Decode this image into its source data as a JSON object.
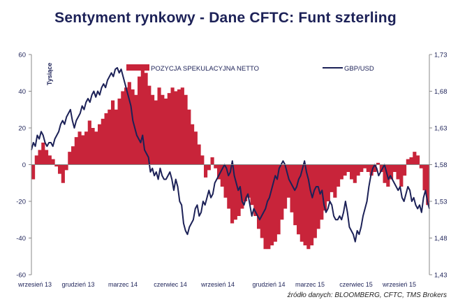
{
  "title": "Sentyment rynkowy - Dane CFTC:  Funt szterling",
  "source": "źródło danych: BLOOMBERG, CFTC, TMS Brokers",
  "colors": {
    "bars": "#c8243a",
    "line": "#1c2157",
    "axis": "#1c2157",
    "title": "#1c2157"
  },
  "chart_data": {
    "type": "bar+line",
    "title": "Sentyment rynkowy - Dane CFTC:  Funt szterling",
    "y_left_label": "Tysiące",
    "y_left": {
      "min": -60,
      "max": 60,
      "ticks": [
        -60,
        -40,
        -20,
        0,
        20,
        40,
        60
      ]
    },
    "y_right": {
      "min": 1.43,
      "max": 1.73,
      "ticks": [
        "1,43",
        "1,48",
        "1,53",
        "1,58",
        "1,63",
        "1,68",
        "1,73"
      ]
    },
    "x_ticks": [
      "wrzesień 13",
      "grudzień 13",
      "marzec 14",
      "czerwiec 14",
      "wrzesień 14",
      "grudzień 14",
      "marzec 15",
      "czerwiec 15",
      "wrzesień 15"
    ],
    "series": [
      {
        "name": "POZYCJA SPEKULACYJNA NETTO",
        "kind": "bar",
        "axis": "left",
        "values": [
          -8,
          5,
          8,
          12,
          8,
          5,
          3,
          -1,
          -5,
          -10,
          -3,
          7,
          10,
          15,
          18,
          16,
          18,
          24,
          20,
          18,
          22,
          25,
          28,
          30,
          35,
          30,
          36,
          40,
          42,
          45,
          41,
          38,
          48,
          53,
          50,
          43,
          38,
          35,
          42,
          38,
          36,
          39,
          42,
          40,
          41,
          42,
          38,
          30,
          22,
          18,
          11,
          5,
          -7,
          -3,
          4,
          -2,
          -8,
          -12,
          -18,
          -24,
          -32,
          -30,
          -28,
          -24,
          -20,
          -18,
          -22,
          -28,
          -35,
          -40,
          -46,
          -46,
          -44,
          -42,
          -38,
          -30,
          -24,
          -18,
          -26,
          -33,
          -38,
          -42,
          -44,
          -46,
          -44,
          -40,
          -35,
          -30,
          -25,
          -20,
          -15,
          -18,
          -12,
          -8,
          -6,
          -4,
          -8,
          -10,
          -6,
          -4,
          -2,
          -4,
          -6,
          -4,
          1,
          -4,
          -10,
          -12,
          -8,
          -4,
          -8,
          -12,
          -6,
          3,
          4,
          7,
          5,
          -2,
          -14,
          -22
        ]
      },
      {
        "name": "GBP/USD",
        "kind": "line",
        "axis": "right",
        "values": [
          1.6,
          1.61,
          1.605,
          1.62,
          1.615,
          1.625,
          1.62,
          1.61,
          1.605,
          1.61,
          1.61,
          1.605,
          1.615,
          1.62,
          1.625,
          1.635,
          1.64,
          1.635,
          1.645,
          1.65,
          1.655,
          1.64,
          1.63,
          1.64,
          1.645,
          1.65,
          1.66,
          1.655,
          1.665,
          1.67,
          1.665,
          1.675,
          1.68,
          1.672,
          1.68,
          1.675,
          1.685,
          1.69,
          1.685,
          1.695,
          1.7,
          1.705,
          1.7,
          1.71,
          1.712,
          1.705,
          1.71,
          1.7,
          1.69,
          1.68,
          1.67,
          1.66,
          1.64,
          1.63,
          1.62,
          1.615,
          1.61,
          1.62,
          1.6,
          1.595,
          1.59,
          1.57,
          1.575,
          1.565,
          1.57,
          1.56,
          1.575,
          1.565,
          1.56,
          1.56,
          1.565,
          1.57,
          1.56,
          1.545,
          1.56,
          1.55,
          1.53,
          1.525,
          1.5,
          1.49,
          1.485,
          1.495,
          1.5,
          1.505,
          1.52,
          1.525,
          1.51,
          1.515,
          1.53,
          1.525,
          1.535,
          1.545,
          1.535,
          1.54,
          1.555,
          1.56,
          1.565,
          1.57,
          1.575,
          1.58,
          1.575,
          1.565,
          1.57,
          1.585,
          1.565,
          1.555,
          1.545,
          1.55,
          1.53,
          1.525,
          1.535,
          1.54,
          1.525,
          1.51,
          1.52,
          1.515,
          1.51,
          1.505,
          1.51,
          1.515,
          1.52,
          1.53,
          1.535,
          1.545,
          1.555,
          1.565,
          1.56,
          1.575,
          1.58,
          1.585,
          1.58,
          1.57,
          1.56,
          1.555,
          1.55,
          1.545,
          1.55,
          1.56,
          1.565,
          1.575,
          1.585,
          1.57,
          1.56,
          1.545,
          1.535,
          1.545,
          1.55,
          1.55,
          1.54,
          1.545,
          1.525,
          1.515,
          1.52,
          1.53,
          1.525,
          1.51,
          1.505,
          1.505,
          1.51,
          1.505,
          1.515,
          1.53,
          1.515,
          1.495,
          1.49,
          1.485,
          1.475,
          1.49,
          1.485,
          1.495,
          1.51,
          1.52,
          1.53,
          1.55,
          1.565,
          1.575,
          1.58,
          1.575,
          1.565,
          1.57,
          1.575,
          1.58,
          1.57,
          1.56,
          1.565,
          1.56,
          1.555,
          1.55,
          1.545,
          1.55,
          1.535,
          1.53,
          1.54,
          1.55,
          1.545,
          1.53,
          1.535,
          1.525,
          1.52,
          1.525,
          1.515,
          1.535,
          1.545,
          1.53,
          1.52
        ]
      }
    ]
  }
}
